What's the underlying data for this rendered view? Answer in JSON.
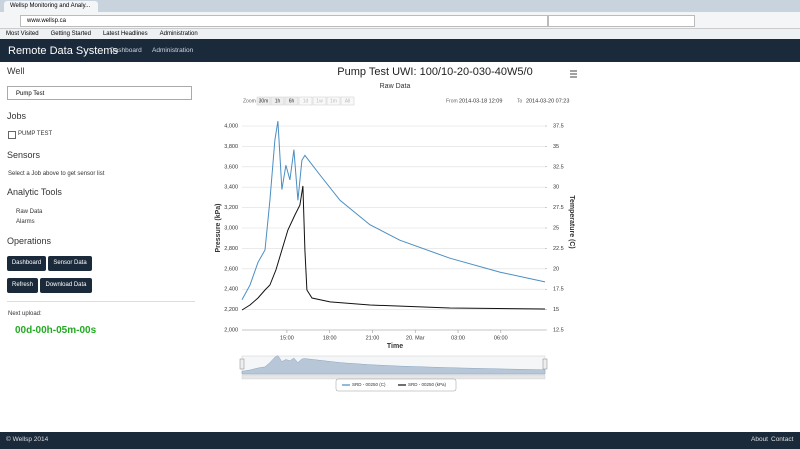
{
  "browser": {
    "tab": "Wellsp Monitoring and Analy...",
    "url": "www.wellsp.ca",
    "search": "",
    "bookmarks": [
      "Most Visited",
      "Getting Started",
      "Latest Headlines",
      "Administration"
    ]
  },
  "navbar": {
    "brand": "Remote Data Systems",
    "links": [
      "Dashboard",
      "Administration"
    ]
  },
  "sidebar": {
    "well_heading": "Well",
    "well_select": "Pump Test",
    "jobs_heading": "Jobs",
    "job": "PUMP TEST",
    "sensors_heading": "Sensors",
    "sensors_note": "Select a Job above to get sensor list",
    "tools_heading": "Analytic Tools",
    "tools": [
      "Raw Data",
      "Alarms"
    ],
    "operations_heading": "Operations",
    "buttons": [
      "Dashboard",
      "Sensor Data",
      "Refresh",
      "Download Data"
    ],
    "next_upload_label": "Next upload:",
    "next_upload": "00d-00h-05m-00s"
  },
  "footer": {
    "copyright": "© Wellsp 2014",
    "links": [
      "About",
      "Contact"
    ]
  },
  "chart_data": {
    "type": "line",
    "title": "Pump Test  UWI:  100/10-20-030-40W5/0",
    "subtitle": "Raw Data",
    "zoom_label": "Zoom",
    "zoom_buttons": [
      "30m",
      "1h",
      "6h",
      "1d",
      "1w",
      "1m",
      "All"
    ],
    "from_label": "From",
    "from": "2014-03-18 12:09",
    "to_label": "To",
    "to": "2014-03-20 07:23",
    "x_label": "Time",
    "y_label": "Pressure (kPa)",
    "y2_label": "Temperature (C)",
    "xlim": [
      11.85,
      33.1
    ],
    "xticks": [
      {
        "value": 15,
        "label": "15:00"
      },
      {
        "value": 18,
        "label": "18:00"
      },
      {
        "value": 21,
        "label": "21:00"
      },
      {
        "value": 24,
        "label": "20. Mar"
      },
      {
        "value": 27,
        "label": "03:00"
      },
      {
        "value": 30,
        "label": "06:00"
      }
    ],
    "ylim": [
      2000,
      4000
    ],
    "yticks": [
      {
        "value": 2000,
        "label": "2,000"
      },
      {
        "value": 2200,
        "label": "2,200"
      },
      {
        "value": 2400,
        "label": "2,400"
      },
      {
        "value": 2600,
        "label": "2,600"
      },
      {
        "value": 2800,
        "label": "2,800"
      },
      {
        "value": 3000,
        "label": "3,000"
      },
      {
        "value": 3200,
        "label": "3,200"
      },
      {
        "value": 3400,
        "label": "3,400"
      },
      {
        "value": 3600,
        "label": "3,600"
      },
      {
        "value": 3800,
        "label": "3,800"
      },
      {
        "value": 4000,
        "label": "4,000"
      }
    ],
    "y2lim": [
      12.5,
      37.5
    ],
    "y2ticks": [
      12.5,
      15,
      17.5,
      20,
      22.5,
      25,
      27.5,
      30,
      32.5,
      35,
      37.5
    ],
    "grid": true,
    "series": [
      {
        "name": "SRD - 00250 (C)",
        "color": "#4a8ec2",
        "axis": "y2",
        "x": [
          11.85,
          12.41,
          12.97,
          13.46,
          13.81,
          14.16,
          14.37,
          14.65,
          14.93,
          15.21,
          15.49,
          15.77,
          16.05,
          16.26,
          17.32,
          18.72,
          20.82,
          22.92,
          26.43,
          29.93,
          33.1
        ],
        "values": [
          16.2,
          18.0,
          20.8,
          22.3,
          28.4,
          35.8,
          38.1,
          29.7,
          32.7,
          30.9,
          34.6,
          28.4,
          33.3,
          33.9,
          31.5,
          28.4,
          25.4,
          23.5,
          21.3,
          19.6,
          18.4
        ]
      },
      {
        "name": "SRD - 00250 (kPa)",
        "color": "#111111",
        "x": [
          11.85,
          12.41,
          12.97,
          13.46,
          13.81,
          14.23,
          14.65,
          15.07,
          15.56,
          15.91,
          16.12,
          16.26,
          16.4,
          16.76,
          18.02,
          20.82,
          26.43,
          33.1
        ],
        "values": [
          2196,
          2245,
          2314,
          2392,
          2441,
          2588,
          2784,
          2980,
          3127,
          3225,
          3412,
          2784,
          2392,
          2314,
          2275,
          2245,
          2216,
          2206
        ]
      }
    ]
  }
}
